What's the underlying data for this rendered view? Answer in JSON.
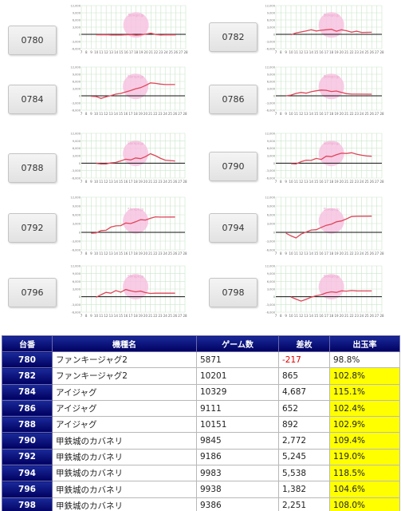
{
  "graph_axis": {
    "y_ticks": [
      "12,000",
      "9,000",
      "6,000",
      "3,000",
      "0",
      "-3,000",
      "-6,000"
    ],
    "x_ticks": [
      "7",
      "8",
      "9",
      "10",
      "11",
      "12",
      "13",
      "14",
      "15",
      "16",
      "17",
      "18",
      "19",
      "20",
      "21",
      "22",
      "23",
      "24",
      "25",
      "26",
      "27",
      "28"
    ],
    "watermark": "Slorepo.jp"
  },
  "colors": {
    "line": "#e0455a",
    "grid": "#c9e6c9",
    "zero_line": "#111111",
    "watermark": "#f7bfe0",
    "header_bg": "#00006a",
    "highlight": "#ffff00",
    "negative": "#e00000"
  },
  "charts": [
    {
      "machine": "0780",
      "series": [
        [
          10,
          -200
        ],
        [
          12,
          -150
        ],
        [
          13,
          -250
        ],
        [
          15,
          -300
        ],
        [
          17,
          -100
        ],
        [
          18,
          -350
        ],
        [
          19,
          -200
        ],
        [
          20,
          100
        ],
        [
          21,
          450
        ],
        [
          22,
          -100
        ],
        [
          23,
          -300
        ],
        [
          24,
          -200
        ],
        [
          26,
          -217
        ]
      ]
    },
    {
      "machine": "0782",
      "series": [
        [
          10,
          -200
        ],
        [
          11,
          600
        ],
        [
          13,
          1400
        ],
        [
          14,
          1900
        ],
        [
          15,
          1400
        ],
        [
          16,
          1700
        ],
        [
          18,
          2100
        ],
        [
          19,
          1300
        ],
        [
          20,
          1900
        ],
        [
          21,
          1500
        ],
        [
          22,
          900
        ],
        [
          23,
          1300
        ],
        [
          24,
          800
        ],
        [
          26,
          865
        ]
      ]
    },
    {
      "machine": "0784",
      "series": [
        [
          9,
          -200
        ],
        [
          10,
          -300
        ],
        [
          11,
          -1100
        ],
        [
          12,
          -400
        ],
        [
          13,
          100
        ],
        [
          14,
          700
        ],
        [
          15,
          1000
        ],
        [
          17,
          2200
        ],
        [
          18,
          2900
        ],
        [
          19,
          3400
        ],
        [
          20,
          4300
        ],
        [
          21,
          5400
        ],
        [
          22,
          5200
        ],
        [
          23,
          4900
        ],
        [
          24,
          4700
        ],
        [
          26,
          4687
        ]
      ]
    },
    {
      "machine": "0786",
      "series": [
        [
          9,
          0
        ],
        [
          10,
          300
        ],
        [
          11,
          1000
        ],
        [
          12,
          1400
        ],
        [
          13,
          1100
        ],
        [
          14,
          1700
        ],
        [
          15,
          2100
        ],
        [
          16,
          2400
        ],
        [
          17,
          2300
        ],
        [
          18,
          1800
        ],
        [
          19,
          2000
        ],
        [
          20,
          1400
        ],
        [
          21,
          900
        ],
        [
          22,
          700
        ],
        [
          23,
          700
        ],
        [
          26,
          652
        ]
      ]
    },
    {
      "machine": "0788",
      "series": [
        [
          10,
          -100
        ],
        [
          11,
          -300
        ],
        [
          12,
          -300
        ],
        [
          13,
          100
        ],
        [
          14,
          300
        ],
        [
          15,
          900
        ],
        [
          16,
          1600
        ],
        [
          17,
          1300
        ],
        [
          18,
          2100
        ],
        [
          19,
          1800
        ],
        [
          20,
          2600
        ],
        [
          21,
          3800
        ],
        [
          22,
          3000
        ],
        [
          23,
          2000
        ],
        [
          24,
          1200
        ],
        [
          26,
          892
        ]
      ]
    },
    {
      "machine": "0790",
      "series": [
        [
          10,
          -200
        ],
        [
          11,
          -300
        ],
        [
          12,
          600
        ],
        [
          13,
          1200
        ],
        [
          14,
          1100
        ],
        [
          15,
          1900
        ],
        [
          16,
          1500
        ],
        [
          17,
          2800
        ],
        [
          18,
          2600
        ],
        [
          19,
          3400
        ],
        [
          20,
          4000
        ],
        [
          21,
          3900
        ],
        [
          22,
          4200
        ],
        [
          23,
          3600
        ],
        [
          24,
          3200
        ],
        [
          25,
          2900
        ],
        [
          26,
          2772
        ]
      ]
    },
    {
      "machine": "0792",
      "series": [
        [
          9,
          -300
        ],
        [
          10,
          -200
        ],
        [
          11,
          600
        ],
        [
          12,
          700
        ],
        [
          13,
          1800
        ],
        [
          14,
          2200
        ],
        [
          15,
          2300
        ],
        [
          16,
          3200
        ],
        [
          17,
          3000
        ],
        [
          18,
          3600
        ],
        [
          19,
          4300
        ],
        [
          20,
          4200
        ],
        [
          21,
          4800
        ],
        [
          22,
          5300
        ],
        [
          23,
          5200
        ],
        [
          26,
          5245
        ]
      ]
    },
    {
      "machine": "0794",
      "series": [
        [
          9,
          -300
        ],
        [
          10,
          -1200
        ],
        [
          11,
          -1900
        ],
        [
          12,
          -600
        ],
        [
          13,
          100
        ],
        [
          14,
          800
        ],
        [
          15,
          900
        ],
        [
          16,
          1700
        ],
        [
          17,
          2400
        ],
        [
          18,
          2800
        ],
        [
          19,
          3600
        ],
        [
          20,
          3900
        ],
        [
          21,
          4600
        ],
        [
          22,
          5400
        ],
        [
          23,
          5500
        ],
        [
          26,
          5538
        ]
      ]
    },
    {
      "machine": "0796",
      "series": [
        [
          10,
          -200
        ],
        [
          11,
          800
        ],
        [
          12,
          1700
        ],
        [
          13,
          1400
        ],
        [
          14,
          2400
        ],
        [
          15,
          1800
        ],
        [
          16,
          2800
        ],
        [
          17,
          2300
        ],
        [
          18,
          1900
        ],
        [
          19,
          2200
        ],
        [
          20,
          1600
        ],
        [
          21,
          1300
        ],
        [
          22,
          1400
        ],
        [
          23,
          1400
        ],
        [
          26,
          1382
        ]
      ]
    },
    {
      "machine": "0798",
      "series": [
        [
          10,
          -100
        ],
        [
          11,
          -900
        ],
        [
          12,
          -1700
        ],
        [
          13,
          -1000
        ],
        [
          14,
          -200
        ],
        [
          15,
          400
        ],
        [
          16,
          800
        ],
        [
          17,
          1500
        ],
        [
          18,
          1900
        ],
        [
          19,
          1700
        ],
        [
          20,
          2300
        ],
        [
          21,
          2200
        ],
        [
          22,
          2400
        ],
        [
          23,
          2300
        ],
        [
          26,
          2251
        ]
      ]
    }
  ],
  "table": {
    "headers": [
      "台番",
      "機種名",
      "ゲーム数",
      "差枚",
      "出玉率"
    ],
    "rows": [
      {
        "no": "780",
        "name": "ファンキージャグ2",
        "games": "5871",
        "diff": "-217",
        "rate": "98.8%",
        "negative": true,
        "highlight": false
      },
      {
        "no": "782",
        "name": "ファンキージャグ2",
        "games": "10201",
        "diff": "865",
        "rate": "102.8%",
        "negative": false,
        "highlight": true
      },
      {
        "no": "784",
        "name": "アイジャグ",
        "games": "10329",
        "diff": "4,687",
        "rate": "115.1%",
        "negative": false,
        "highlight": true
      },
      {
        "no": "786",
        "name": "アイジャグ",
        "games": "9111",
        "diff": "652",
        "rate": "102.4%",
        "negative": false,
        "highlight": true
      },
      {
        "no": "788",
        "name": "アイジャグ",
        "games": "10151",
        "diff": "892",
        "rate": "102.9%",
        "negative": false,
        "highlight": true
      },
      {
        "no": "790",
        "name": "甲鉄城のカバネリ",
        "games": "9845",
        "diff": "2,772",
        "rate": "109.4%",
        "negative": false,
        "highlight": true
      },
      {
        "no": "792",
        "name": "甲鉄城のカバネリ",
        "games": "9186",
        "diff": "5,245",
        "rate": "119.0%",
        "negative": false,
        "highlight": true
      },
      {
        "no": "794",
        "name": "甲鉄城のカバネリ",
        "games": "9983",
        "diff": "5,538",
        "rate": "118.5%",
        "negative": false,
        "highlight": true
      },
      {
        "no": "796",
        "name": "甲鉄城のカバネリ",
        "games": "9938",
        "diff": "1,382",
        "rate": "104.6%",
        "negative": false,
        "highlight": true
      },
      {
        "no": "798",
        "name": "甲鉄城のカバネリ",
        "games": "9386",
        "diff": "2,251",
        "rate": "108.0%",
        "negative": false,
        "highlight": true
      }
    ]
  }
}
